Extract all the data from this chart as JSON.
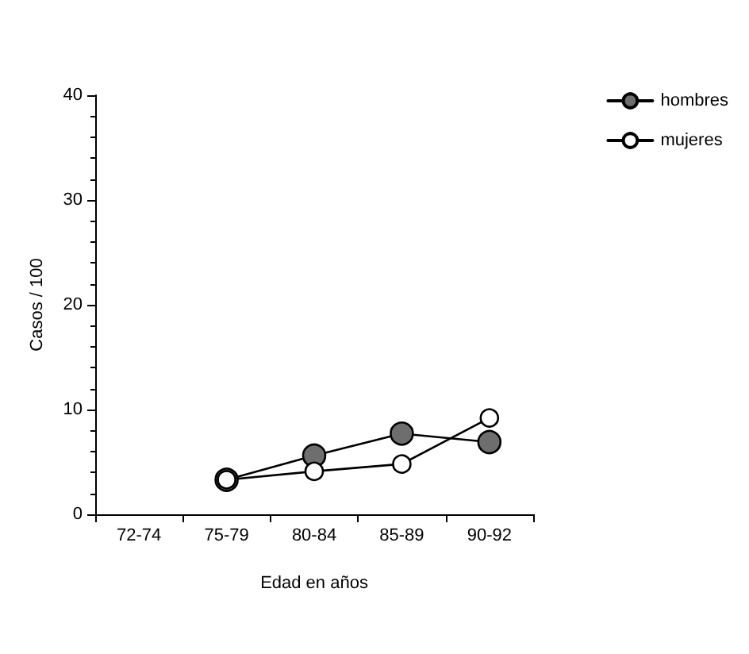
{
  "chart_data": {
    "type": "line",
    "xlabel": "Edad en años",
    "ylabel": "Casos / 100",
    "categories": [
      "72-74",
      "75-79",
      "80-84",
      "85-89",
      "90-92"
    ],
    "series": [
      {
        "name": "hombres",
        "color": "#6e6e6e",
        "values": [
          null,
          3.3,
          5.6,
          7.7,
          6.9
        ]
      },
      {
        "name": "mujeres",
        "color": "#000000",
        "values": [
          null,
          3.3,
          4.1,
          4.8,
          9.2
        ]
      }
    ],
    "ylim": [
      0,
      40
    ],
    "yticks": [
      0,
      10,
      20,
      30,
      40
    ],
    "grid": false,
    "legend": "top right",
    "marker": "circle",
    "line_style": "solid"
  }
}
